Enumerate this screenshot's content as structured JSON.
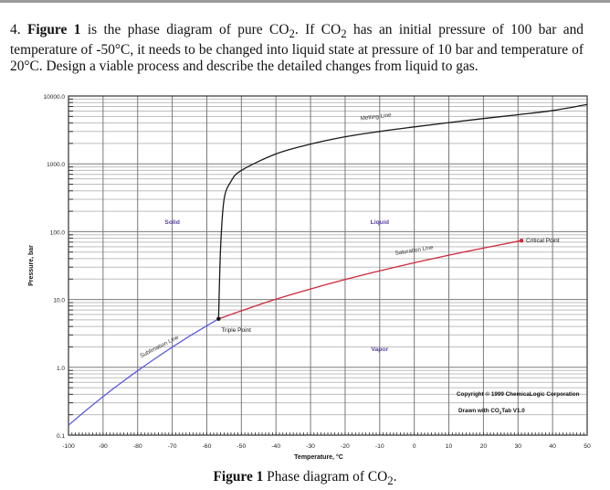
{
  "question": {
    "number": "4.",
    "figure_ref": "Figure 1",
    "text_1": " is the phase diagram of pure CO",
    "sub_2": "2",
    "text_2": ". If CO",
    "sub_2b": "2",
    "text_3": " has an initial pressure of 100 bar and temperature of -50°C, it needs to be changed into liquid state at pressure of 10 bar and temperature of 20°C. Design a viable process and describe the detailed changes from liquid to gas."
  },
  "caption": {
    "label": "Figure 1",
    "text": " Phase diagram of CO",
    "sub": "2",
    "end": "."
  },
  "chart_data": {
    "type": "line",
    "title": "Phase diagram of CO2",
    "xlabel": "Temperature, °C",
    "ylabel": "Pressure, bar",
    "xlim": [
      -100,
      50
    ],
    "ylim": [
      0.1,
      10000.0
    ],
    "yscale": "log",
    "grid": true,
    "x_ticks": [
      "-100",
      "-90",
      "-80",
      "-70",
      "-60",
      "-50",
      "-40",
      "-30",
      "-20",
      "-10",
      "0",
      "10",
      "20",
      "30",
      "40",
      "50"
    ],
    "y_ticks": [
      "0.1",
      "1.0",
      "10.0",
      "100.0",
      "1000.0",
      "10000.0"
    ],
    "series": [
      {
        "name": "Sublimation Line",
        "color": "#5a5ae0",
        "x": [
          -100,
          -95,
          -90,
          -85,
          -80,
          -75,
          -70,
          -65,
          -60,
          -56.6
        ],
        "y": [
          0.14,
          0.23,
          0.37,
          0.58,
          0.89,
          1.34,
          1.98,
          2.88,
          4.1,
          5.18
        ]
      },
      {
        "name": "Saturation Line",
        "color": "#d0283c",
        "x": [
          -56.6,
          -50,
          -40,
          -30,
          -20,
          -10,
          0,
          10,
          20,
          31
        ],
        "y": [
          5.18,
          6.8,
          10.1,
          14.3,
          19.7,
          26.5,
          34.9,
          45.0,
          57.3,
          73.8
        ]
      },
      {
        "name": "Melting Line",
        "color": "#1a1a1a",
        "x": [
          -56.6,
          -56.0,
          -55.0,
          -53.0,
          -50,
          -40,
          -30,
          -20,
          -10,
          0,
          10,
          20,
          30,
          40,
          50
        ],
        "y": [
          5.18,
          60,
          300,
          550,
          800,
          1400,
          1950,
          2500,
          3000,
          3500,
          4050,
          4650,
          5300,
          6100,
          7500
        ]
      }
    ],
    "points": [
      {
        "name": "Triple Point",
        "x": -56.6,
        "y": 5.18
      },
      {
        "name": "Critical Point",
        "x": 31,
        "y": 73.8
      }
    ],
    "region_labels": [
      {
        "text": "Solid",
        "x": -70,
        "y": 130
      },
      {
        "text": "Liquid",
        "x": -10,
        "y": 130
      },
      {
        "text": "Vapor",
        "x": -10,
        "y": 1.7
      }
    ],
    "annotations": [
      "Copyright © 1999 ChemicaLogic Corporation",
      "Drawn with CO₂Tab V1.0"
    ],
    "labels": {
      "sublimation": "Sublimation Line",
      "saturation": "Saturation Line",
      "melting": "Melting Line",
      "triple": "Triple Point",
      "critical": "Critical Point",
      "solid": "Solid",
      "liquid": "Liquid",
      "vapor": "Vapor",
      "copyright": "Copyright © 1999 ChemicaLogic Corporation",
      "drawn_prefix": "Drawn with CO",
      "drawn_sub": "2",
      "drawn_suffix": "Tab V1.0"
    }
  }
}
